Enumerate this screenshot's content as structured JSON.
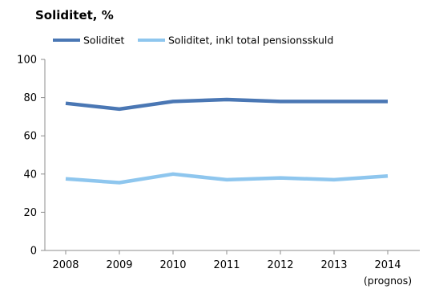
{
  "chart_data": {
    "type": "line",
    "title": "Soliditet, %",
    "xlabel": "",
    "ylabel": "",
    "categories": [
      "2008",
      "2009",
      "2010",
      "2011",
      "2012",
      "2013",
      "2014"
    ],
    "category_note": "(prognos)",
    "ylim": [
      0,
      100
    ],
    "yticks": [
      "0",
      "20",
      "40",
      "60",
      "80",
      "100"
    ],
    "grid": false,
    "legend_position": "top-left",
    "series": [
      {
        "name": "Soliditet",
        "color": "#4a77b4",
        "values": [
          77,
          74,
          78,
          79,
          78,
          78,
          78
        ]
      },
      {
        "name": "Soliditet, inkl total pensionsskuld",
        "color": "#8ec6ee",
        "values": [
          37.5,
          35.5,
          40,
          37,
          38,
          37,
          39
        ]
      }
    ]
  }
}
